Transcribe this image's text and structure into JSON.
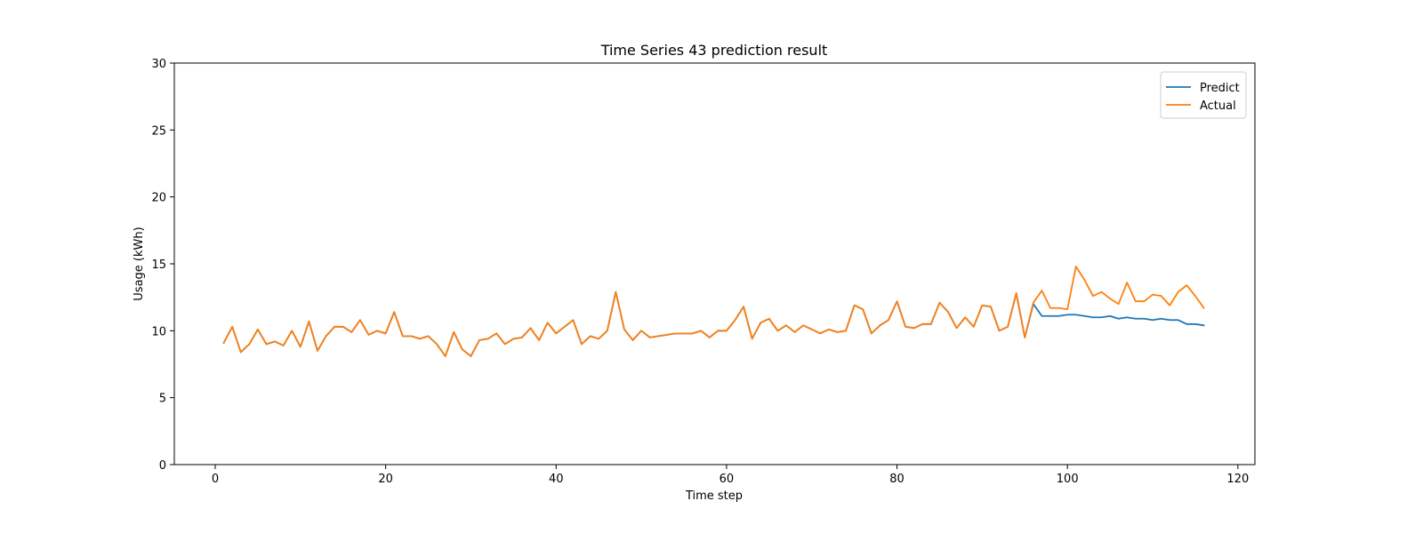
{
  "chart_data": {
    "type": "line",
    "title": "Time Series 43 prediction result",
    "xlabel": "Time step",
    "ylabel": "Usage (kWh)",
    "xlim": [
      -4.8,
      122
    ],
    "ylim": [
      0,
      30
    ],
    "xticks": [
      0,
      20,
      40,
      60,
      80,
      100,
      120
    ],
    "yticks": [
      0,
      5,
      10,
      15,
      20,
      25,
      30
    ],
    "grid": false,
    "legend_position": "top-right",
    "series": [
      {
        "name": "Predict",
        "color": "#1f77b4",
        "x_start": 1,
        "values": [
          9.1,
          10.3,
          8.4,
          9.0,
          10.1,
          9.0,
          9.2,
          8.9,
          10.0,
          8.8,
          10.7,
          8.5,
          9.6,
          10.3,
          10.3,
          9.9,
          10.8,
          9.7,
          10.0,
          9.8,
          11.4,
          9.6,
          9.6,
          9.4,
          9.6,
          9.0,
          8.1,
          9.9,
          8.6,
          8.1,
          9.3,
          9.4,
          9.8,
          9.0,
          9.4,
          9.5,
          10.2,
          9.3,
          10.6,
          9.8,
          10.3,
          10.8,
          9.0,
          9.6,
          9.4,
          10.0,
          12.9,
          10.1,
          9.3,
          10.0,
          9.5,
          9.6,
          9.7,
          9.8,
          9.8,
          9.8,
          10.0,
          9.5,
          10.0,
          10.0,
          10.8,
          11.8,
          9.4,
          10.6,
          10.9,
          10.0,
          10.4,
          9.9,
          10.4,
          10.1,
          9.8,
          10.1,
          9.9,
          10.0,
          11.9,
          11.6,
          9.8,
          10.4,
          10.8,
          12.2,
          10.3,
          10.2,
          10.5,
          10.5,
          12.1,
          11.4,
          10.2,
          11.0,
          10.3,
          11.9,
          11.8,
          10.0,
          10.3,
          12.8,
          9.5,
          12.0,
          11.1,
          11.1,
          11.1,
          11.2,
          11.2,
          11.1,
          11.0,
          11.0,
          11.1,
          10.9,
          11.0,
          10.9,
          10.9,
          10.8,
          10.9,
          10.8,
          10.8,
          10.5,
          10.5,
          10.4
        ]
      },
      {
        "name": "Actual",
        "color": "#ff7f0e",
        "x_start": 1,
        "values": [
          9.1,
          10.3,
          8.4,
          9.0,
          10.1,
          9.0,
          9.2,
          8.9,
          10.0,
          8.8,
          10.7,
          8.5,
          9.6,
          10.3,
          10.3,
          9.9,
          10.8,
          9.7,
          10.0,
          9.8,
          11.4,
          9.6,
          9.6,
          9.4,
          9.6,
          9.0,
          8.1,
          9.9,
          8.6,
          8.1,
          9.3,
          9.4,
          9.8,
          9.0,
          9.4,
          9.5,
          10.2,
          9.3,
          10.6,
          9.8,
          10.3,
          10.8,
          9.0,
          9.6,
          9.4,
          10.0,
          12.9,
          10.1,
          9.3,
          10.0,
          9.5,
          9.6,
          9.7,
          9.8,
          9.8,
          9.8,
          10.0,
          9.5,
          10.0,
          10.0,
          10.8,
          11.8,
          9.4,
          10.6,
          10.9,
          10.0,
          10.4,
          9.9,
          10.4,
          10.1,
          9.8,
          10.1,
          9.9,
          10.0,
          11.9,
          11.6,
          9.8,
          10.4,
          10.8,
          12.2,
          10.3,
          10.2,
          10.5,
          10.5,
          12.1,
          11.4,
          10.2,
          11.0,
          10.3,
          11.9,
          11.8,
          10.0,
          10.3,
          12.8,
          9.5,
          12.1,
          13.0,
          11.7,
          11.7,
          11.6,
          14.8,
          13.8,
          12.6,
          12.9,
          12.4,
          12.0,
          13.6,
          12.2,
          12.2,
          12.7,
          12.6,
          11.9,
          12.9,
          13.4,
          12.6,
          11.7
        ]
      }
    ]
  }
}
